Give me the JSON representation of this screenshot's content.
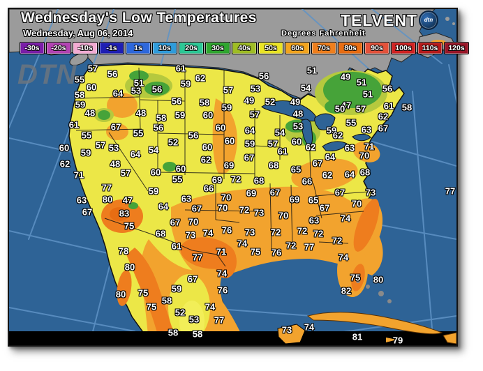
{
  "header": {
    "title": "Wednesday's Low Temperatures",
    "date": "Wednesday, Aug 06, 2014",
    "units": "Degrees Fahrenheit",
    "logo_text": "TELVENT",
    "logo_badge": "dtn"
  },
  "watermark": "DTN",
  "colors": {
    "ocean": "#2e6396",
    "grid": "#5f93c6",
    "canada": "#9b9b9b",
    "land_yellow": "#ece747",
    "land_bright_yellow": "#f2ee58",
    "land_yellowgreen": "#b5c93e",
    "land_green": "#46a339",
    "land_orange": "#f2a32e",
    "land_deep_orange": "#ee7d1e",
    "land_hot": "#e86d13",
    "bottom_bar": "#000000"
  },
  "legend": [
    {
      "label": "-30s",
      "color": "#7a1da8"
    },
    {
      "label": "-20s",
      "color": "#b343b3"
    },
    {
      "label": "-10s",
      "color": "#f3abd3"
    },
    {
      "label": "-1s",
      "color": "#1e1eb4"
    },
    {
      "label": "1s",
      "color": "#2e68dc"
    },
    {
      "label": "10s",
      "color": "#2f9cdb"
    },
    {
      "label": "20s",
      "color": "#2cc795"
    },
    {
      "label": "30s",
      "color": "#2fa62f"
    },
    {
      "label": "40s",
      "color": "#9fbd24"
    },
    {
      "label": "50s",
      "color": "#eae426"
    },
    {
      "label": "60s",
      "color": "#f2a41e"
    },
    {
      "label": "70s",
      "color": "#ef7f1d"
    },
    {
      "label": "80s",
      "color": "#e86d13"
    },
    {
      "label": "90s",
      "color": "#e4523a"
    },
    {
      "label": "100s",
      "color": "#d12222"
    },
    {
      "label": "110s",
      "color": "#b81b1b"
    },
    {
      "label": "120s",
      "color": "#991527"
    }
  ],
  "temps": [
    [
      57,
      120,
      85
    ],
    [
      56,
      148,
      93
    ],
    [
      55,
      101,
      101
    ],
    [
      60,
      118,
      112
    ],
    [
      58,
      101,
      123
    ],
    [
      59,
      102,
      137
    ],
    [
      48,
      116,
      149
    ],
    [
      64,
      156,
      121
    ],
    [
      51,
      186,
      106
    ],
    [
      53,
      182,
      117
    ],
    [
      56,
      212,
      115
    ],
    [
      48,
      189,
      149
    ],
    [
      58,
      218,
      156
    ],
    [
      56,
      214,
      170
    ],
    [
      61,
      93,
      166
    ],
    [
      67,
      153,
      169
    ],
    [
      55,
      111,
      181
    ],
    [
      55,
      185,
      178
    ],
    [
      57,
      131,
      195
    ],
    [
      53,
      150,
      199
    ],
    [
      59,
      110,
      206
    ],
    [
      60,
      79,
      199
    ],
    [
      64,
      181,
      208
    ],
    [
      54,
      207,
      202
    ],
    [
      52,
      235,
      191
    ],
    [
      62,
      80,
      222
    ],
    [
      48,
      152,
      222
    ],
    [
      57,
      167,
      235
    ],
    [
      60,
      210,
      234
    ],
    [
      71,
      100,
      238
    ],
    [
      77,
      140,
      256
    ],
    [
      59,
      207,
      261
    ],
    [
      63,
      104,
      274
    ],
    [
      80,
      141,
      273
    ],
    [
      47,
      170,
      274
    ],
    [
      67,
      112,
      291
    ],
    [
      83,
      165,
      293
    ],
    [
      75,
      172,
      311
    ],
    [
      78,
      164,
      347
    ],
    [
      80,
      173,
      370
    ],
    [
      80,
      160,
      409
    ],
    [
      75,
      192,
      407
    ],
    [
      75,
      204,
      427
    ],
    [
      61,
      246,
      85
    ],
    [
      62,
      274,
      99
    ],
    [
      59,
      253,
      107
    ],
    [
      57,
      314,
      116
    ],
    [
      56,
      365,
      96
    ],
    [
      53,
      353,
      114
    ],
    [
      56,
      240,
      132
    ],
    [
      58,
      280,
      134
    ],
    [
      59,
      312,
      141
    ],
    [
      49,
      344,
      131
    ],
    [
      52,
      374,
      133
    ],
    [
      49,
      410,
      133
    ],
    [
      59,
      245,
      152
    ],
    [
      60,
      285,
      152
    ],
    [
      57,
      352,
      151
    ],
    [
      48,
      414,
      150
    ],
    [
      53,
      414,
      168
    ],
    [
      60,
      303,
      170
    ],
    [
      64,
      345,
      174
    ],
    [
      54,
      388,
      177
    ],
    [
      56,
      264,
      181
    ],
    [
      60,
      316,
      189
    ],
    [
      59,
      345,
      193
    ],
    [
      57,
      378,
      193
    ],
    [
      60,
      412,
      190
    ],
    [
      62,
      432,
      198
    ],
    [
      60,
      284,
      198
    ],
    [
      61,
      392,
      204
    ],
    [
      62,
      282,
      216
    ],
    [
      67,
      344,
      213
    ],
    [
      69,
      315,
      224
    ],
    [
      68,
      379,
      224
    ],
    [
      65,
      411,
      230
    ],
    [
      60,
      246,
      229
    ],
    [
      55,
      241,
      244
    ],
    [
      69,
      298,
      245
    ],
    [
      72,
      325,
      244
    ],
    [
      68,
      358,
      246
    ],
    [
      66,
      427,
      247
    ],
    [
      66,
      286,
      257
    ],
    [
      69,
      347,
      264
    ],
    [
      67,
      381,
      263
    ],
    [
      63,
      254,
      272
    ],
    [
      70,
      311,
      270
    ],
    [
      69,
      409,
      273
    ],
    [
      64,
      221,
      283
    ],
    [
      67,
      269,
      286
    ],
    [
      70,
      306,
      285
    ],
    [
      72,
      337,
      288
    ],
    [
      73,
      358,
      292
    ],
    [
      70,
      393,
      296
    ],
    [
      67,
      238,
      306
    ],
    [
      70,
      264,
      305
    ],
    [
      68,
      217,
      322
    ],
    [
      73,
      260,
      324
    ],
    [
      74,
      285,
      321
    ],
    [
      76,
      312,
      317
    ],
    [
      73,
      345,
      320
    ],
    [
      72,
      382,
      320
    ],
    [
      61,
      240,
      340
    ],
    [
      74,
      334,
      336
    ],
    [
      77,
      270,
      356
    ],
    [
      71,
      304,
      348
    ],
    [
      75,
      353,
      348
    ],
    [
      76,
      383,
      349
    ],
    [
      51,
      434,
      88
    ],
    [
      54,
      425,
      113
    ],
    [
      49,
      482,
      97
    ],
    [
      51,
      505,
      105
    ],
    [
      51,
      514,
      122
    ],
    [
      56,
      542,
      114
    ],
    [
      47,
      483,
      138
    ],
    [
      50,
      474,
      143
    ],
    [
      57,
      504,
      143
    ],
    [
      61,
      544,
      139
    ],
    [
      58,
      570,
      141
    ],
    [
      62,
      536,
      154
    ],
    [
      55,
      490,
      163
    ],
    [
      63,
      512,
      173
    ],
    [
      67,
      536,
      171
    ],
    [
      59,
      462,
      174
    ],
    [
      62,
      471,
      181
    ],
    [
      63,
      488,
      199
    ],
    [
      71,
      516,
      197
    ],
    [
      70,
      509,
      210
    ],
    [
      64,
      460,
      212
    ],
    [
      67,
      442,
      221
    ],
    [
      62,
      456,
      238
    ],
    [
      64,
      488,
      237
    ],
    [
      68,
      510,
      234
    ],
    [
      67,
      474,
      263
    ],
    [
      73,
      518,
      263
    ],
    [
      65,
      436,
      274
    ],
    [
      70,
      498,
      279
    ],
    [
      67,
      452,
      285
    ],
    [
      74,
      482,
      300
    ],
    [
      63,
      437,
      303
    ],
    [
      77,
      632,
      261
    ],
    [
      72,
      420,
      318
    ],
    [
      72,
      443,
      322
    ],
    [
      72,
      470,
      332
    ],
    [
      72,
      404,
      339
    ],
    [
      77,
      430,
      341
    ],
    [
      74,
      479,
      356
    ],
    [
      75,
      496,
      385
    ],
    [
      80,
      529,
      388
    ],
    [
      82,
      483,
      404
    ],
    [
      74,
      305,
      379
    ],
    [
      67,
      263,
      387
    ],
    [
      59,
      240,
      401
    ],
    [
      76,
      306,
      403
    ],
    [
      58,
      226,
      418
    ],
    [
      52,
      245,
      435
    ],
    [
      74,
      288,
      427
    ],
    [
      53,
      265,
      445
    ],
    [
      77,
      301,
      446
    ],
    [
      58,
      235,
      464
    ],
    [
      58,
      270,
      466
    ],
    [
      73,
      398,
      460
    ],
    [
      74,
      430,
      456
    ],
    [
      81,
      499,
      470
    ],
    [
      79,
      557,
      475
    ]
  ]
}
